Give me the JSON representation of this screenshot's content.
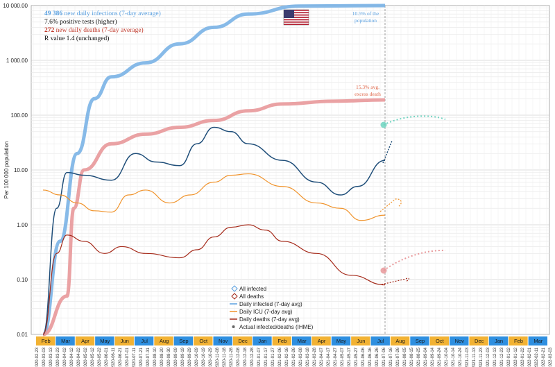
{
  "info": {
    "line1_value": "49 386",
    "line1_text": " new daily infections (7-day average)",
    "line2": "7.6% positive tests (higher)",
    "line3_value": "272",
    "line3_text": " new daily deaths (7-day average)",
    "line4": "R value 1.4 (unchanged)"
  },
  "annotations": {
    "population_1": "10.5% of the",
    "population_2": "population",
    "excess_1": "15.3% avg.",
    "excess_2": "excess death"
  },
  "colors": {
    "all_infected": "#7ab3e6",
    "all_deaths": "#e8989a",
    "daily_infected": "#1f4e79",
    "daily_icu": "#f0932b",
    "daily_deaths": "#a52a1a",
    "ihme": "#6fd3c0",
    "month_orange": "#f2b233",
    "month_blue": "#2e8fe0"
  },
  "chart_data": {
    "type": "line",
    "scale": "log",
    "ylabel": "Per 100 000 population",
    "ylim": [
      0.01,
      10000
    ],
    "yticks": [
      "10 000.00",
      "1 000.00",
      "100.00",
      "10.00",
      "1.00",
      "0.10",
      "0.01"
    ],
    "legend_position": "bottom-center",
    "legend": [
      "All infected",
      "All deaths",
      "Daily infected (7-day avg)",
      "Daily ICU (7-day avg)",
      "Daily deaths (7-day avg)",
      "Actual infected/deaths (IHME)"
    ],
    "months": [
      "Feb",
      "Mar",
      "Apr",
      "May",
      "Jun",
      "Jul",
      "Aug",
      "Sep",
      "Oct",
      "Nov",
      "Dec",
      "Jan",
      "Feb",
      "Mar",
      "Apr",
      "May",
      "Jun",
      "Jul",
      "Aug",
      "Sep",
      "Oct",
      "Nov",
      "Dec",
      "Jan",
      "Feb",
      "Mar"
    ],
    "dates": [
      "2020-02-23",
      "2020-03-03",
      "2020-03-13",
      "2020-03-23",
      "2020-04-02",
      "2020-04-12",
      "2020-04-22",
      "2020-05-02",
      "2020-05-12",
      "2020-05-22",
      "2020-06-01",
      "2020-06-11",
      "2020-06-21",
      "2020-07-01",
      "2020-07-11",
      "2020-07-21",
      "2020-07-31",
      "2020-08-10",
      "2020-08-20",
      "2020-08-30",
      "2020-09-09",
      "2020-09-19",
      "2020-09-29",
      "2020-10-09",
      "2020-10-19",
      "2020-10-29",
      "2020-11-08",
      "2020-11-18",
      "2020-11-28",
      "2020-12-08",
      "2020-12-18",
      "2020-12-28",
      "2021-01-07",
      "2021-01-17",
      "2021-01-27",
      "2021-02-06",
      "2021-02-16",
      "2021-02-26",
      "2021-03-08",
      "2021-03-18",
      "2021-03-28",
      "2021-04-07",
      "2021-04-17",
      "2021-04-27",
      "2021-05-07",
      "2021-05-17",
      "2021-05-27",
      "2021-06-06",
      "2021-06-16",
      "2021-06-26",
      "2021-07-06",
      "2021-07-16",
      "2021-07-26",
      "2021-08-05",
      "2021-08-15",
      "2021-08-25",
      "2021-09-04",
      "2021-09-14",
      "2021-09-24",
      "2021-10-04",
      "2021-10-14",
      "2021-10-24",
      "2021-11-03",
      "2021-11-13",
      "2021-11-23",
      "2021-12-03",
      "2021-12-13",
      "2021-12-23",
      "2022-01-02",
      "2022-01-12",
      "2022-01-22",
      "2022-02-01",
      "2022-02-11",
      "2022-02-21",
      "2022-03-03",
      "2022-03-13",
      "2022-03-23"
    ],
    "series": [
      {
        "name": "All infected",
        "points": [
          [
            0.0,
            0.01
          ],
          [
            0.05,
            0.5
          ],
          [
            0.1,
            20
          ],
          [
            0.15,
            200
          ],
          [
            0.2,
            500
          ],
          [
            0.3,
            900
          ],
          [
            0.4,
            2000
          ],
          [
            0.5,
            4000
          ],
          [
            0.6,
            7000
          ],
          [
            0.75,
            9800
          ],
          [
            1.0,
            10500
          ]
        ]
      },
      {
        "name": "All deaths",
        "points": [
          [
            0.0,
            0.001
          ],
          [
            0.07,
            0.05
          ],
          [
            0.09,
            2
          ],
          [
            0.12,
            10
          ],
          [
            0.2,
            30
          ],
          [
            0.3,
            45
          ],
          [
            0.4,
            60
          ],
          [
            0.5,
            80
          ],
          [
            0.6,
            120
          ],
          [
            0.7,
            160
          ],
          [
            0.85,
            180
          ],
          [
            1.0,
            190
          ]
        ]
      },
      {
        "name": "Daily infected (7-day avg)",
        "points": [
          [
            0.0,
            0.01
          ],
          [
            0.04,
            2
          ],
          [
            0.07,
            9
          ],
          [
            0.12,
            8
          ],
          [
            0.2,
            6.5
          ],
          [
            0.27,
            20
          ],
          [
            0.33,
            14
          ],
          [
            0.4,
            12
          ],
          [
            0.45,
            30
          ],
          [
            0.5,
            60
          ],
          [
            0.55,
            50
          ],
          [
            0.6,
            30
          ],
          [
            0.7,
            15
          ],
          [
            0.8,
            6
          ],
          [
            0.87,
            3.5
          ],
          [
            0.92,
            5
          ],
          [
            1.0,
            15
          ]
        ]
      },
      {
        "name": "Daily ICU (7-day avg)",
        "points": [
          [
            0.0,
            4.3
          ],
          [
            0.05,
            3.5
          ],
          [
            0.1,
            2.5
          ],
          [
            0.15,
            1.8
          ],
          [
            0.2,
            1.7
          ],
          [
            0.25,
            3.5
          ],
          [
            0.3,
            4.3
          ],
          [
            0.37,
            2.5
          ],
          [
            0.43,
            3.5
          ],
          [
            0.5,
            6
          ],
          [
            0.55,
            8
          ],
          [
            0.6,
            8.5
          ],
          [
            0.7,
            5
          ],
          [
            0.8,
            2.5
          ],
          [
            0.87,
            2
          ],
          [
            0.93,
            1.2
          ],
          [
            1.0,
            1.5
          ]
        ]
      },
      {
        "name": "Daily deaths (7-day avg)",
        "points": [
          [
            0.0,
            0.001
          ],
          [
            0.04,
            0.3
          ],
          [
            0.07,
            0.65
          ],
          [
            0.12,
            0.5
          ],
          [
            0.18,
            0.3
          ],
          [
            0.23,
            0.4
          ],
          [
            0.3,
            0.3
          ],
          [
            0.4,
            0.25
          ],
          [
            0.45,
            0.35
          ],
          [
            0.5,
            0.6
          ],
          [
            0.55,
            0.9
          ],
          [
            0.6,
            1.0
          ],
          [
            0.65,
            0.8
          ],
          [
            0.7,
            0.5
          ],
          [
            0.8,
            0.3
          ],
          [
            0.9,
            0.12
          ],
          [
            1.0,
            0.08
          ]
        ]
      },
      {
        "name": "Actual infected/deaths (IHME)",
        "points": []
      }
    ]
  }
}
